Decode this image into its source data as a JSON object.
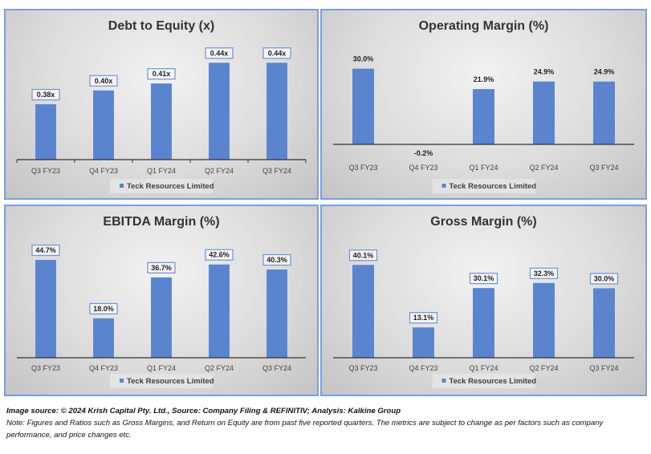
{
  "chart_data": [
    {
      "type": "bar",
      "title": "Debt to Equity (x)",
      "categories": [
        "Q3 FY23",
        "Q4  FY23",
        "Q1 FY24",
        "Q2 FY24",
        "Q3 FY24"
      ],
      "series": [
        {
          "name": "Teck Resources Limited",
          "values": [
            0.38,
            0.4,
            0.41,
            0.44,
            0.44
          ]
        }
      ],
      "data_labels": [
        "0.38x",
        "0.40x",
        "0.41x",
        "0.44x",
        "0.44x"
      ],
      "label_style": "boxed",
      "xlabel": "",
      "ylabel": "",
      "ylim": [
        0.3,
        0.46
      ],
      "grid": false,
      "legend": "bottom"
    },
    {
      "type": "bar",
      "title": "Operating Margin (%)",
      "categories": [
        "Q3 FY23",
        "Q4  FY23",
        "Q1 FY24",
        "Q2 FY24",
        "Q3 FY24"
      ],
      "series": [
        {
          "name": "Teck Resources Limited",
          "values": [
            30.0,
            -0.2,
            21.9,
            24.9,
            24.9
          ]
        }
      ],
      "data_labels": [
        "30.0%",
        "-0.2%",
        "21.9%",
        "24.9%",
        "24.9%"
      ],
      "label_style": "plain",
      "xlabel": "",
      "ylabel": "",
      "ylim": [
        -5,
        34
      ],
      "grid": false,
      "legend": "bottom"
    },
    {
      "type": "bar",
      "title": "EBITDA Margin (%)",
      "categories": [
        "Q3 FY23",
        "Q4  FY23",
        "Q1 FY24",
        "Q2 FY24",
        "Q3 FY24"
      ],
      "series": [
        {
          "name": "Teck Resources Limited",
          "values": [
            44.7,
            18.0,
            36.7,
            42.6,
            40.3
          ]
        }
      ],
      "data_labels": [
        "44.7%",
        "18.0%",
        "36.7%",
        "42.6%",
        "40.3%"
      ],
      "label_style": "boxed",
      "xlabel": "",
      "ylabel": "",
      "ylim": [
        0,
        48
      ],
      "grid": false,
      "legend": "bottom"
    },
    {
      "type": "bar",
      "title": "Gross Margin (%)",
      "categories": [
        "Q3 FY23",
        "Q4  FY23",
        "Q1 FY24",
        "Q2 FY24",
        "Q3 FY24"
      ],
      "series": [
        {
          "name": "Teck Resources Limited",
          "values": [
            40.1,
            13.1,
            30.1,
            32.3,
            30.0
          ]
        }
      ],
      "data_labels": [
        "40.1%",
        "13.1%",
        "30.1%",
        "32.3%",
        "30.0%"
      ],
      "label_style": "boxed",
      "xlabel": "",
      "ylabel": "",
      "ylim": [
        0,
        44
      ],
      "grid": false,
      "legend": "bottom"
    }
  ],
  "colors": {
    "bar": "#5b84cf",
    "panel_border": "#7a9fdc",
    "label_box_border": "#6f93d6"
  },
  "footer": {
    "source": "Image source: © 2024 Krish Capital Pty. Ltd., Source: Company Filing & REFINITIV; Analysis: Kalkine Group",
    "note": "Note: Figures and Ratios such as  Gross Margins, and Return on Equity are from past  five reported  quarters. The metrics are subject to change as per factors such as company performance, and price changes etc."
  }
}
